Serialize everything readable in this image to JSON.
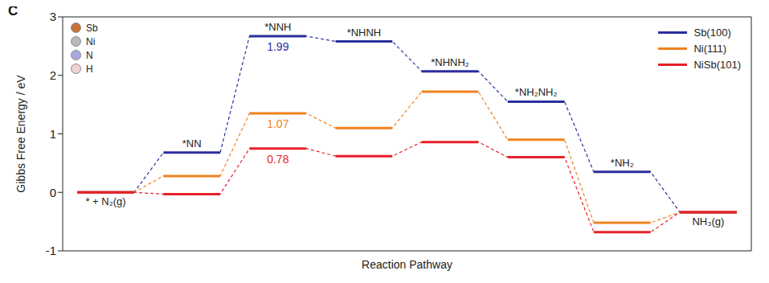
{
  "chart_data": {
    "type": "step_line",
    "panel_label": "C",
    "y_label": "Gibbs Free Energy / eV",
    "x_label": "Reaction Pathway",
    "steps": [
      "* + N₂(g)",
      "*NN",
      "*NNH",
      "*NHNH",
      "*NHNH₂",
      "*NH₂NH₂",
      "*NH₂",
      "NH₃(g)"
    ],
    "series": [
      {
        "name": "Sb(100)",
        "color": "#2b2f9e",
        "values": [
          0,
          0.68,
          2.67,
          2.58,
          2.07,
          1.55,
          0.35,
          -0.34
        ]
      },
      {
        "name": "Ni(111)",
        "color": "#f0821e",
        "values": [
          0,
          0.28,
          1.35,
          1.1,
          1.72,
          0.9,
          -0.52,
          -0.34
        ]
      },
      {
        "name": "NiSb(101)",
        "color": "#e8202a",
        "values": [
          0,
          -0.03,
          0.75,
          0.62,
          0.86,
          0.6,
          -0.68,
          -0.34
        ]
      }
    ],
    "annotations": [
      {
        "step": 2,
        "series": "Sb(100)",
        "value": 1.99
      },
      {
        "step": 2,
        "series": "Ni(111)",
        "value": 1.07
      },
      {
        "step": 2,
        "series": "NiSb(101)",
        "value": 0.78
      }
    ],
    "atom_legend": [
      {
        "label": "Sb",
        "color": "#c8733a"
      },
      {
        "label": "Ni",
        "color": "#b9b9b9"
      },
      {
        "label": "N",
        "color": "#a9a9e0"
      },
      {
        "label": "H",
        "color": "#efd2d2"
      }
    ],
    "ylim": [
      -1,
      3
    ],
    "yticks": [
      -1,
      0,
      1,
      2,
      3
    ],
    "tick_labels": "y",
    "legend": "upper right",
    "line_style": "dashed"
  }
}
